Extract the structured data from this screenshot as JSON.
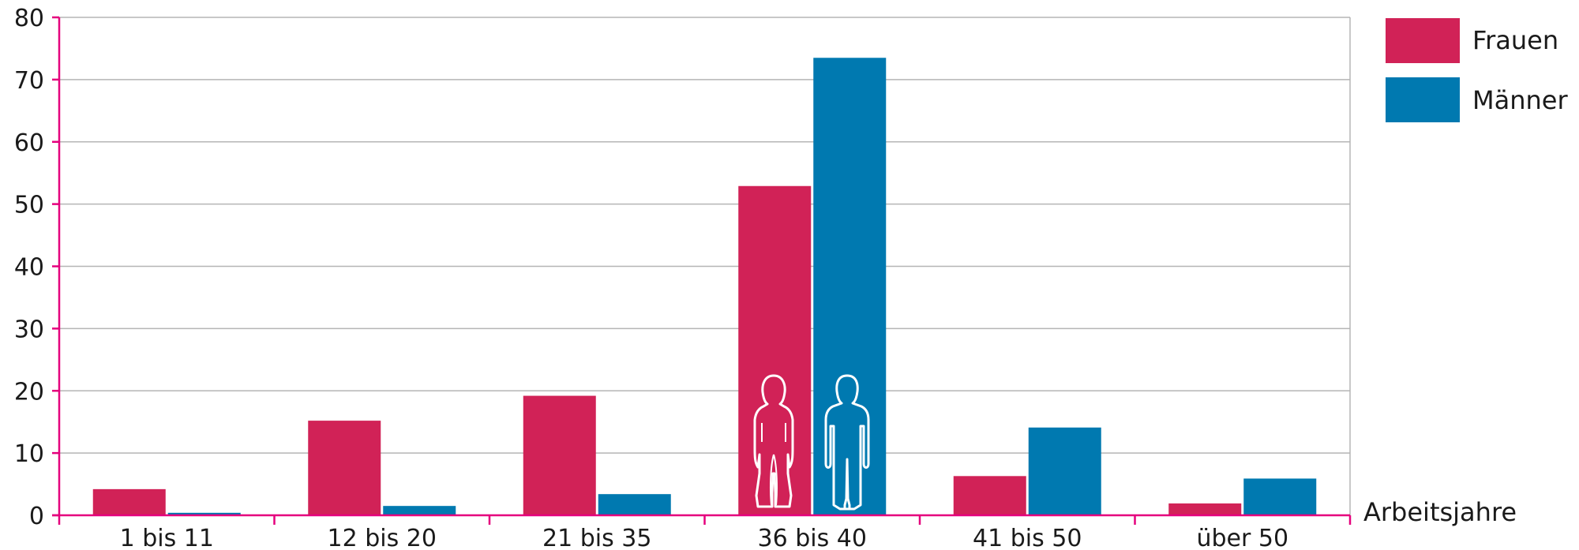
{
  "chart_data": {
    "type": "bar",
    "title": "",
    "xlabel": "Arbeitsjahre",
    "ylabel": "",
    "ylim": [
      0,
      80
    ],
    "yticks": [
      0,
      10,
      20,
      30,
      40,
      50,
      60,
      70,
      80
    ],
    "grid": true,
    "legend_position": "top-right",
    "categories": [
      "1 bis 11",
      "12 bis 20",
      "21 bis 35",
      "36 bis 40",
      "41 bis 50",
      "über 50"
    ],
    "series": [
      {
        "name": "Frauen",
        "color": "#d12257",
        "values": [
          4.2,
          15.2,
          19.2,
          52.9,
          6.3,
          1.9
        ]
      },
      {
        "name": "Männer",
        "color": "#0079b0",
        "values": [
          0.4,
          1.5,
          3.4,
          73.5,
          14.1,
          5.9
        ]
      }
    ],
    "axis_color": "#e5007d",
    "grid_color": "#b5b5b5",
    "icons": [
      "woman-silhouette-icon",
      "man-silhouette-icon"
    ]
  }
}
